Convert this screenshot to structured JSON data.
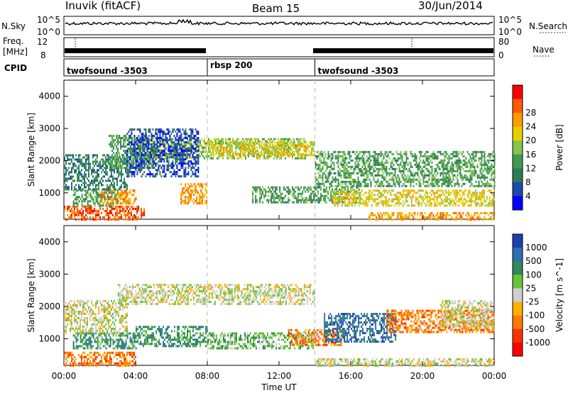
{
  "header": {
    "station": "Inuvik (fitACF)",
    "beam": "Beam 15",
    "date": "30/Jun/2014"
  },
  "strip_labels": {
    "nsky": "N.Sky",
    "freq_line1": "Freq.",
    "freq_line2": "[MHz]",
    "cpid": "CPID",
    "nsearch": "N.Search",
    "nave": "Nave"
  },
  "strip_ticks": {
    "nsky_top": "10^5",
    "nsky_bottom": "10^0",
    "freq_top": "12",
    "freq_bottom": "8",
    "nave_top": "80",
    "nave_bottom": "0"
  },
  "cpid_segments": [
    {
      "label": "twofsound -3503",
      "start_hour": 0,
      "end_hour": 8
    },
    {
      "label": "rbsp 200",
      "start_hour": 8,
      "end_hour": 14
    },
    {
      "label": "twofsound -3503",
      "start_hour": 14,
      "end_hour": 24
    }
  ],
  "colors": {
    "power": [
      "#0000ff",
      "#1a4aa8",
      "#2f7a56",
      "#3f9a52",
      "#86c44a",
      "#e8d000",
      "#ff9c00",
      "#ff5a00",
      "#ff0000"
    ],
    "velocity": [
      "#1f3faa",
      "#2f6eb0",
      "#2e8a5a",
      "#69c23a",
      "#cfcfcf",
      "#ffb000",
      "#ff7a00",
      "#ff3000",
      "#ff0000"
    ]
  },
  "chart_data": [
    {
      "type": "heatmap",
      "name": "power",
      "xlabel": "Time UT",
      "ylabel": "Slant Range [km]",
      "colorbar_label": "Power [dB]",
      "xlim_hours": [
        0,
        24
      ],
      "x_ticks": [
        "00:00",
        "04:00",
        "08:00",
        "12:00",
        "16:00",
        "20:00",
        "00:00"
      ],
      "x_tick_hours": [
        0,
        4,
        8,
        12,
        16,
        20,
        24
      ],
      "ylim": [
        180,
        4500
      ],
      "y_ticks": [
        1000,
        2000,
        3000,
        4000
      ],
      "colorbar_ticks": [
        "4",
        "8",
        "12",
        "16",
        "20",
        "24",
        "28"
      ],
      "colorbar_range": [
        0,
        30
      ],
      "blobs": [
        {
          "t0": 0.0,
          "t1": 4.5,
          "r0": 200,
          "r1": 600,
          "v": 28
        },
        {
          "t0": 0.5,
          "t1": 3.0,
          "r0": 600,
          "r1": 1100,
          "v": 10
        },
        {
          "t0": 2.0,
          "t1": 4.0,
          "r0": 700,
          "r1": 1100,
          "v": 24
        },
        {
          "t0": 0.0,
          "t1": 3.5,
          "r0": 1100,
          "r1": 2200,
          "v": 6
        },
        {
          "t0": 2.5,
          "t1": 5.0,
          "r0": 1800,
          "r1": 2800,
          "v": 10
        },
        {
          "t0": 6.5,
          "t1": 8.0,
          "r0": 700,
          "r1": 1300,
          "v": 24
        },
        {
          "t0": 4.0,
          "t1": 13.5,
          "r0": 2100,
          "r1": 2700,
          "v": 14
        },
        {
          "t0": 8.0,
          "t1": 14.0,
          "r0": 2200,
          "r1": 2600,
          "v": 18
        },
        {
          "t0": 10.5,
          "t1": 16.5,
          "r0": 700,
          "r1": 1200,
          "v": 10
        },
        {
          "t0": 14.0,
          "t1": 24.0,
          "r0": 1200,
          "r1": 2300,
          "v": 10
        },
        {
          "t0": 15.0,
          "t1": 24.0,
          "r0": 600,
          "r1": 1100,
          "v": 20
        },
        {
          "t0": 17.0,
          "t1": 24.0,
          "r0": 200,
          "r1": 400,
          "v": 22
        },
        {
          "t0": 3.5,
          "t1": 7.5,
          "r0": 1500,
          "r1": 3000,
          "v": 4
        }
      ]
    },
    {
      "type": "heatmap",
      "name": "velocity",
      "xlabel": "Time UT",
      "ylabel": "Slant Range [km]",
      "colorbar_label": "Velocity [m s^-1]",
      "xlim_hours": [
        0,
        24
      ],
      "x_ticks": [
        "00:00",
        "04:00",
        "08:00",
        "12:00",
        "16:00",
        "20:00",
        "00:00"
      ],
      "x_tick_hours": [
        0,
        4,
        8,
        12,
        16,
        20,
        24
      ],
      "ylim": [
        180,
        4500
      ],
      "y_ticks": [
        1000,
        2000,
        3000,
        4000
      ],
      "colorbar_ticks": [
        "1000",
        "500",
        "100",
        "25",
        "-25",
        "-100",
        "-500",
        "-1000"
      ],
      "blobs": [
        {
          "t0": 0.0,
          "t1": 4.0,
          "r0": 200,
          "r1": 600,
          "v": -300
        },
        {
          "t0": 0.5,
          "t1": 4.0,
          "r0": 700,
          "r1": 1200,
          "v": 200
        },
        {
          "t0": 3.0,
          "t1": 14.0,
          "r0": 2100,
          "r1": 2700,
          "v": 0
        },
        {
          "t0": 4.0,
          "t1": 8.0,
          "r0": 800,
          "r1": 1400,
          "v": 150
        },
        {
          "t0": 8.0,
          "t1": 14.0,
          "r0": 700,
          "r1": 1200,
          "v": 80
        },
        {
          "t0": 12.5,
          "t1": 15.5,
          "r0": 800,
          "r1": 1300,
          "v": -300
        },
        {
          "t0": 14.5,
          "t1": 18.5,
          "r0": 900,
          "r1": 1800,
          "v": 600
        },
        {
          "t0": 18.0,
          "t1": 24.0,
          "r0": 1200,
          "r1": 1900,
          "v": -300
        },
        {
          "t0": 14.0,
          "t1": 24.0,
          "r0": 200,
          "r1": 400,
          "v": 0
        },
        {
          "t0": 0.0,
          "t1": 3.5,
          "r0": 1200,
          "r1": 2200,
          "v": 0
        },
        {
          "t0": 21.0,
          "t1": 24.0,
          "r0": 1400,
          "r1": 2200,
          "v": 0
        }
      ]
    }
  ]
}
